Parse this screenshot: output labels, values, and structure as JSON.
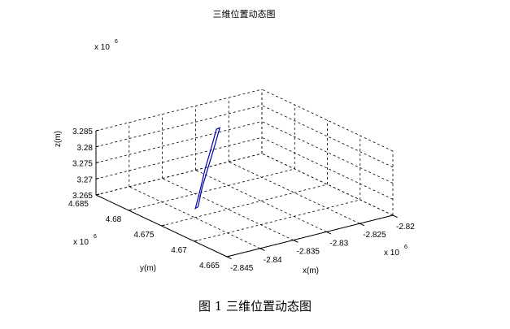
{
  "chart_data": {
    "type": "line3d",
    "title": "三维位置动态图",
    "xlabel": "x(m)",
    "ylabel": "y(m)",
    "zlabel": "z(m)",
    "x_exponent": "x 10",
    "y_exponent": "x 10",
    "z_exponent": "x 10",
    "exponent_power": "6",
    "x_ticks": [
      "-2.845",
      "-2.84",
      "-2.835",
      "-2.83",
      "-2.825",
      "-2.82"
    ],
    "y_ticks": [
      "4.665",
      "4.67",
      "4.675",
      "4.68",
      "4.685"
    ],
    "z_ticks": [
      "3.265",
      "3.27",
      "3.275",
      "3.28",
      "3.285"
    ],
    "xlim": [
      -2845000,
      -2820000
    ],
    "ylim": [
      4665000,
      4685000
    ],
    "zlim": [
      3265000,
      3285000
    ],
    "grid": true,
    "series": [
      {
        "color": "#0000aa",
        "points": [
          [
            -2838200,
            4676300,
            3266200
          ],
          [
            -2836300,
            4677600,
            3270000
          ],
          [
            -2834100,
            4678900,
            3273900
          ],
          [
            -2831900,
            4680200,
            3277800
          ],
          [
            -2829900,
            4681400,
            3281600
          ],
          [
            -2830400,
            4681400,
            3281400
          ],
          [
            -2832500,
            4680100,
            3277600
          ],
          [
            -2834700,
            4678800,
            3273600
          ],
          [
            -2836800,
            4677400,
            3269700
          ],
          [
            -2838700,
            4676200,
            3266000
          ],
          [
            -2838200,
            4676300,
            3266200
          ]
        ]
      }
    ]
  },
  "caption": "图 1  三维位置动态图"
}
